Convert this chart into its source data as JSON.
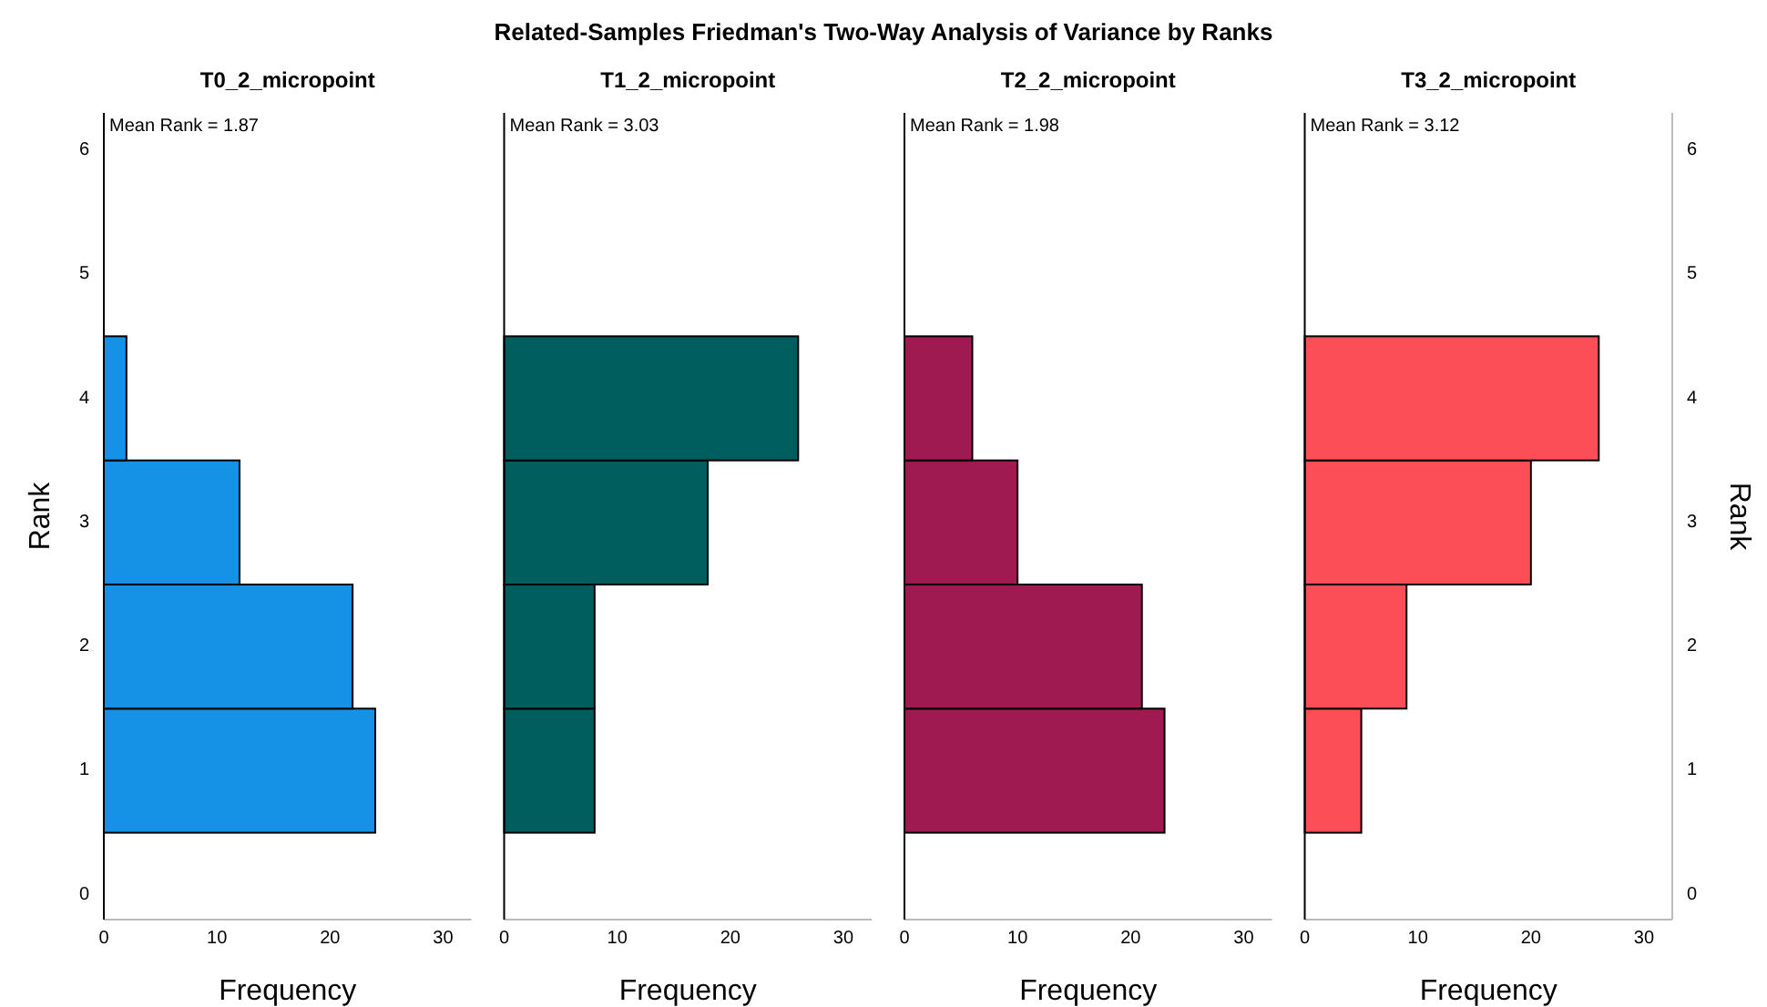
{
  "chart_data": [
    {
      "type": "other",
      "title": "Related-Samples Friedman's Two-Way Analysis of Variance by Ranks"
    },
    {
      "type": "histogram",
      "orientation": "horizontal",
      "title": "T0_2_micropoint",
      "xlabel": "Frequency",
      "ylabel": "Rank",
      "bins": [
        0.5,
        1.5,
        2.5,
        3.5,
        4.5
      ],
      "values": [
        24,
        22,
        12,
        2
      ],
      "color": "#1591e6",
      "xlim": [
        0,
        32.5
      ],
      "xticks": [
        0,
        10,
        20,
        30
      ],
      "ylim": [
        -0.2,
        6.3
      ],
      "yticks": [
        0,
        1,
        2,
        3,
        4,
        5,
        6
      ],
      "annotations": [
        "Mean Rank = 1.87"
      ]
    },
    {
      "type": "histogram",
      "orientation": "horizontal",
      "title": "T1_2_micropoint",
      "xlabel": "Frequency",
      "bins": [
        0.5,
        1.5,
        2.5,
        3.5,
        4.5
      ],
      "values": [
        8,
        8,
        18,
        26
      ],
      "color": "#005e5e",
      "xlim": [
        0,
        32.5
      ],
      "xticks": [
        0,
        10,
        20,
        30
      ],
      "ylim": [
        -0.2,
        6.3
      ],
      "yticks": [
        0,
        1,
        2,
        3,
        4,
        5,
        6
      ],
      "tick_labels": "x",
      "annotations": [
        "Mean Rank = 3.03"
      ]
    },
    {
      "type": "histogram",
      "orientation": "horizontal",
      "title": "T2_2_micropoint",
      "xlabel": "Frequency",
      "bins": [
        0.5,
        1.5,
        2.5,
        3.5,
        4.5
      ],
      "values": [
        23,
        21,
        10,
        6
      ],
      "color": "#9e1a50",
      "xlim": [
        0,
        32.5
      ],
      "xticks": [
        0,
        10,
        20,
        30
      ],
      "ylim": [
        -0.2,
        6.3
      ],
      "yticks": [
        0,
        1,
        2,
        3,
        4,
        5,
        6
      ],
      "tick_labels": "x",
      "annotations": [
        "Mean Rank = 1.98"
      ]
    },
    {
      "type": "histogram",
      "orientation": "horizontal",
      "title": "T3_2_micropoint",
      "xlabel": "Frequency",
      "ylabel": "Rank",
      "bins": [
        0.5,
        1.5,
        2.5,
        3.5,
        4.5
      ],
      "values": [
        5,
        9,
        20,
        26
      ],
      "color": "#fc4e56",
      "xlim": [
        0,
        32.5
      ],
      "xticks": [
        0,
        10,
        20,
        30
      ],
      "ylim": [
        -0.2,
        6.3
      ],
      "yticks": [
        0,
        1,
        2,
        3,
        4,
        5,
        6
      ],
      "annotations": [
        "Mean Rank = 3.12"
      ]
    }
  ]
}
